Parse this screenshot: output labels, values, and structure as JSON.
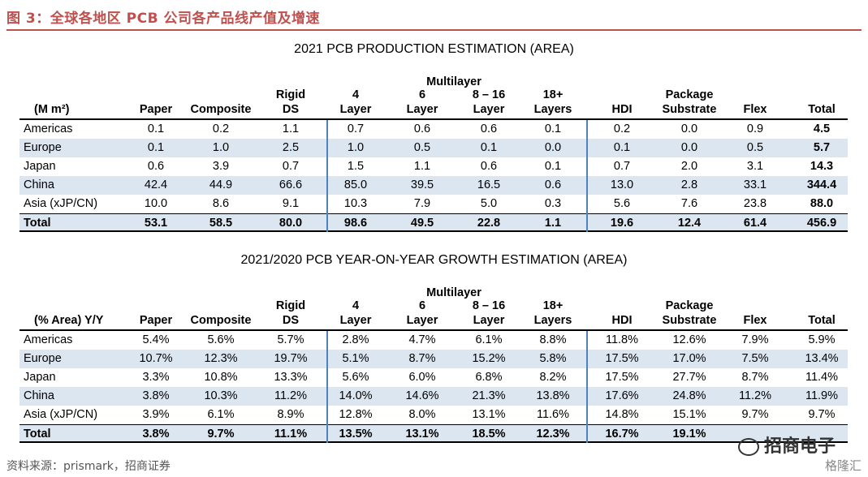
{
  "figure_title": "图 3：全球各地区 PCB 公司各产品线产值及增速",
  "source": "资料来源：prismark，招商证券",
  "watermark": "招商电子",
  "watermark2": "格隆汇",
  "table1": {
    "title": "2021 PCB PRODUCTION ESTIMATION (AREA)",
    "multilayer_label": "Multilayer",
    "unit_label": "(M m²)",
    "columns": [
      "Paper",
      "Composite",
      "Rigid DS",
      "4 Layer",
      "6 Layer",
      "8 – 16 Layer",
      "18+ Layers",
      "HDI",
      "Package Substrate",
      "Flex",
      "Total"
    ],
    "rows": [
      {
        "label": "Americas",
        "values": [
          "0.1",
          "0.2",
          "1.1",
          "0.7",
          "0.6",
          "0.6",
          "0.1",
          "0.2",
          "0.0",
          "0.9",
          "4.5"
        ]
      },
      {
        "label": "Europe",
        "values": [
          "0.1",
          "1.0",
          "2.5",
          "1.0",
          "0.5",
          "0.1",
          "0.0",
          "0.1",
          "0.0",
          "0.5",
          "5.7"
        ]
      },
      {
        "label": "Japan",
        "values": [
          "0.6",
          "3.9",
          "0.7",
          "1.5",
          "1.1",
          "0.6",
          "0.1",
          "0.7",
          "2.0",
          "3.1",
          "14.3"
        ]
      },
      {
        "label": "China",
        "values": [
          "42.4",
          "44.9",
          "66.6",
          "85.0",
          "39.5",
          "16.5",
          "0.6",
          "13.0",
          "2.8",
          "33.1",
          "344.4"
        ]
      },
      {
        "label": "Asia (xJP/CN)",
        "values": [
          "10.0",
          "8.6",
          "9.1",
          "10.3",
          "7.9",
          "5.0",
          "0.3",
          "5.6",
          "7.6",
          "23.8",
          "88.0"
        ]
      },
      {
        "label": "Total",
        "values": [
          "53.1",
          "58.5",
          "80.0",
          "98.6",
          "49.5",
          "22.8",
          "1.1",
          "19.6",
          "12.4",
          "61.4",
          "456.9"
        ]
      }
    ]
  },
  "table2": {
    "title": "2021/2020 PCB YEAR-ON-YEAR GROWTH ESTIMATION (AREA)",
    "multilayer_label": "Multilayer",
    "unit_label": "(% Area) Y/Y",
    "columns": [
      "Paper",
      "Composite",
      "Rigid DS",
      "4 Layer",
      "6 Layer",
      "8 – 16 Layer",
      "18+ Layers",
      "HDI",
      "Package Substrate",
      "Flex",
      "Total"
    ],
    "rows": [
      {
        "label": "Americas",
        "values": [
          "5.4%",
          "5.6%",
          "5.7%",
          "2.8%",
          "4.7%",
          "6.1%",
          "8.8%",
          "11.8%",
          "12.6%",
          "7.9%",
          "5.9%"
        ]
      },
      {
        "label": "Europe",
        "values": [
          "10.7%",
          "12.3%",
          "19.7%",
          "5.1%",
          "8.7%",
          "15.2%",
          "5.8%",
          "17.5%",
          "17.0%",
          "7.5%",
          "13.4%"
        ]
      },
      {
        "label": "Japan",
        "values": [
          "3.3%",
          "10.8%",
          "13.3%",
          "5.6%",
          "6.0%",
          "6.8%",
          "8.2%",
          "17.5%",
          "27.7%",
          "8.7%",
          "11.4%"
        ]
      },
      {
        "label": "China",
        "values": [
          "3.8%",
          "10.3%",
          "11.2%",
          "14.0%",
          "14.6%",
          "21.3%",
          "13.8%",
          "17.6%",
          "24.8%",
          "11.2%",
          "11.9%"
        ]
      },
      {
        "label": "Asia (xJP/CN)",
        "values": [
          "3.9%",
          "6.1%",
          "8.9%",
          "12.8%",
          "8.0%",
          "13.1%",
          "11.6%",
          "14.8%",
          "15.1%",
          "9.7%",
          "9.7%"
        ]
      },
      {
        "label": "Total",
        "values": [
          "3.8%",
          "9.7%",
          "11.1%",
          "13.5%",
          "13.1%",
          "18.5%",
          "12.3%",
          "16.7%",
          "19.1%",
          "",
          ""
        ]
      }
    ]
  }
}
